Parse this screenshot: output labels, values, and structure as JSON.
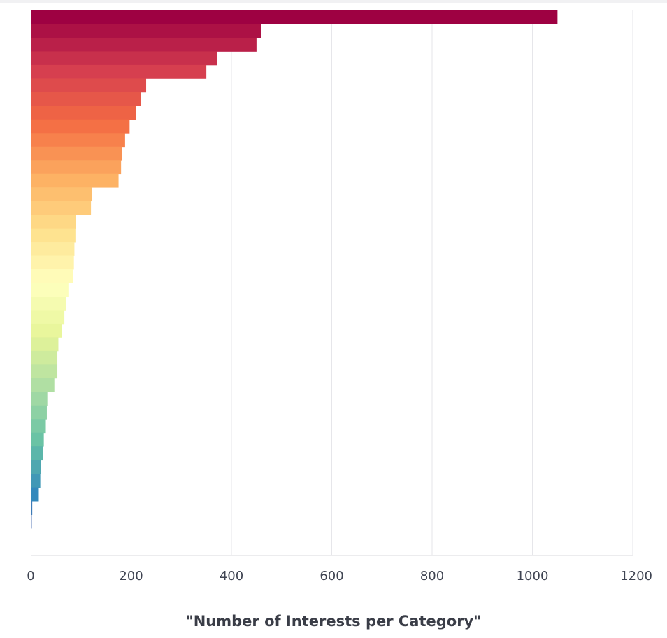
{
  "chart_data": {
    "type": "bar",
    "orientation": "horizontal",
    "title": "",
    "xlabel": "\"Number of Interests per Category\"",
    "ylabel": "",
    "xlim": [
      0,
      1200
    ],
    "x_ticks": [
      0,
      200,
      400,
      600,
      800,
      1000,
      1200
    ],
    "grid": "vertical",
    "legend": "none",
    "color_scale": "spectral (red to blue)",
    "values": [
      1050,
      459,
      450,
      372,
      350,
      230,
      220,
      210,
      197,
      188,
      182,
      180,
      175,
      122,
      120,
      90,
      89,
      87,
      86,
      85,
      75,
      70,
      67,
      62,
      55,
      53,
      53,
      47,
      33,
      32,
      30,
      26,
      25,
      20,
      19,
      16,
      3,
      2,
      1,
      1
    ]
  },
  "colors": {
    "grid": "#e6e6ea",
    "axis": "#d8d8de",
    "text": "#3f4452"
  }
}
